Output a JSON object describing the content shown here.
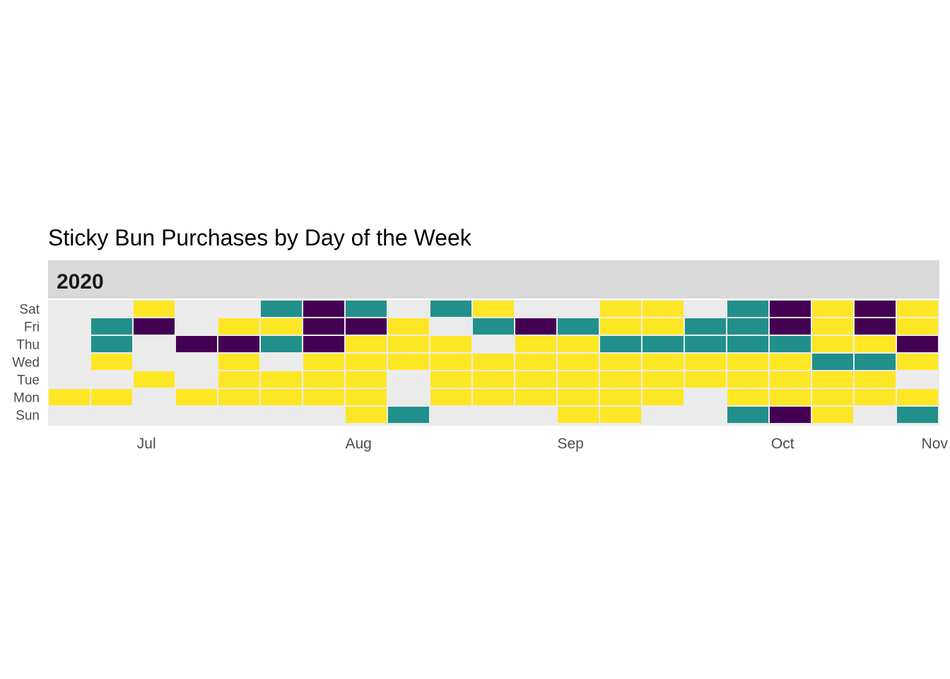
{
  "chart_data": {
    "type": "heatmap",
    "title": "Sticky Bun Purchases by Day of the Week",
    "facet": "2020",
    "xlabel": "",
    "ylabel": "",
    "day_labels": [
      "Sat",
      "Fri",
      "Thu",
      "Wed",
      "Tue",
      "Mon",
      "Sun"
    ],
    "month_ticks": [
      {
        "label": "Jul",
        "week": 2.5
      },
      {
        "label": "Aug",
        "week": 7.5
      },
      {
        "label": "Sep",
        "week": 12.5
      },
      {
        "label": "Oct",
        "week": 17.5
      },
      {
        "label": "Nov",
        "week": 22.5
      }
    ],
    "x_range_weeks": [
      0,
      21
    ],
    "weeks": 21,
    "legend": "none",
    "colors": {
      "1": "#FDE725",
      "2": "#21908C",
      "3": "#440154",
      "empty": "#EBEBEB",
      "strip": "#D9D9D9",
      "border": "#FFFFFF"
    },
    "cells": {
      "Sat": [
        0,
        0,
        1,
        0,
        0,
        2,
        3,
        2,
        0,
        2,
        1,
        0,
        0,
        1,
        1,
        0,
        2,
        3,
        1,
        3,
        1
      ],
      "Fri": [
        0,
        2,
        3,
        0,
        1,
        1,
        3,
        3,
        1,
        0,
        2,
        3,
        2,
        1,
        1,
        2,
        2,
        3,
        1,
        3,
        1
      ],
      "Thu": [
        0,
        2,
        0,
        3,
        3,
        2,
        3,
        1,
        1,
        1,
        0,
        1,
        1,
        2,
        2,
        2,
        2,
        2,
        1,
        1,
        3
      ],
      "Wed": [
        0,
        1,
        0,
        0,
        1,
        0,
        1,
        1,
        1,
        1,
        1,
        1,
        1,
        1,
        1,
        1,
        1,
        1,
        2,
        2,
        1
      ],
      "Tue": [
        0,
        0,
        1,
        0,
        1,
        1,
        1,
        1,
        0,
        1,
        1,
        1,
        1,
        1,
        1,
        1,
        1,
        1,
        1,
        1,
        0
      ],
      "Mon": [
        1,
        1,
        0,
        1,
        1,
        1,
        1,
        1,
        0,
        1,
        1,
        1,
        1,
        1,
        1,
        0,
        1,
        1,
        1,
        1,
        1
      ],
      "Sun": [
        0,
        0,
        0,
        0,
        0,
        0,
        0,
        1,
        2,
        0,
        0,
        0,
        1,
        1,
        0,
        0,
        2,
        3,
        1,
        0,
        2
      ]
    }
  }
}
